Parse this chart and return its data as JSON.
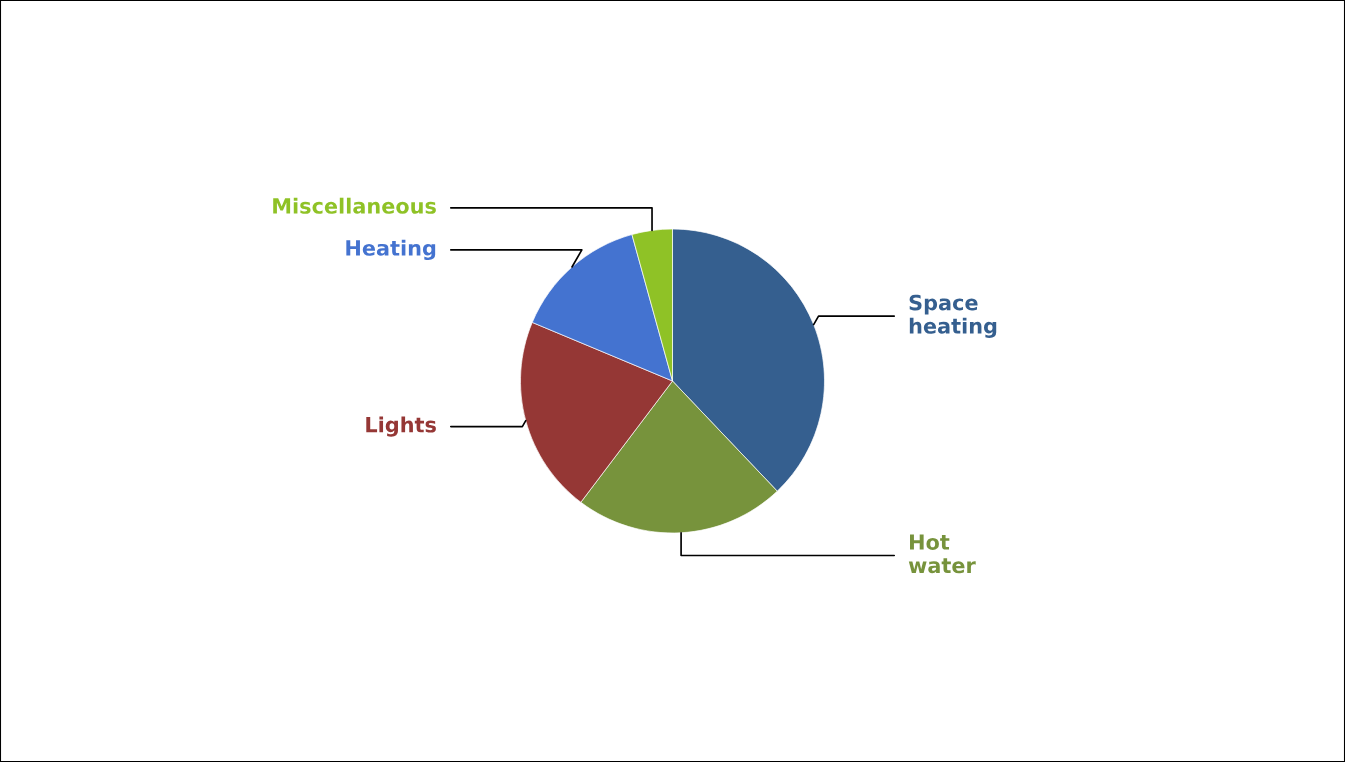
{
  "chart_data": {
    "type": "pie",
    "categories": [
      "Space\nheating",
      "Hot\nwater",
      "Lights",
      "Heating",
      "Miscellaneous"
    ],
    "values": [
      37.9,
      22.4,
      21.0,
      14.4,
      4.3
    ],
    "colors": [
      "#355f8f",
      "#77933c",
      "#953735",
      "#4473d0",
      "#8fc226"
    ]
  }
}
